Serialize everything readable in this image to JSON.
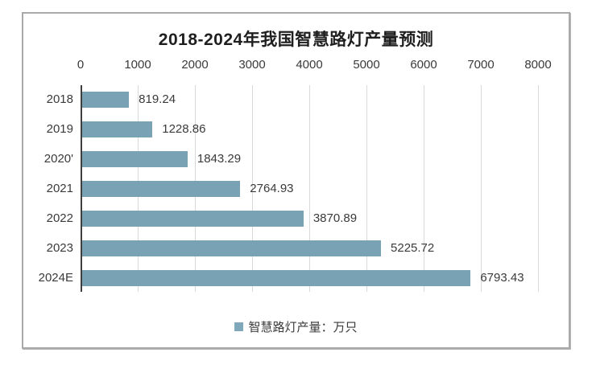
{
  "window": {
    "background": "#ffffff",
    "panel_border_color": "#a9a9a9"
  },
  "chart_data": {
    "type": "bar",
    "orientation": "horizontal",
    "title": "2018-2024年我国智慧路灯产量预测",
    "categories": [
      "2018",
      "2019",
      "2020'",
      "2021",
      "2022",
      "2023",
      "2024E"
    ],
    "values": [
      819.24,
      1228.86,
      1843.29,
      2764.93,
      3870.89,
      5225.72,
      6793.43
    ],
    "value_labels": [
      "819.24",
      "1228.86",
      "1843.29",
      "2764.93",
      "3870.89",
      "5225.72",
      "6793.43"
    ],
    "x_ticks": [
      "0",
      "1000",
      "2000",
      "3000",
      "4000",
      "5000",
      "6000",
      "7000",
      "8000"
    ],
    "xlim": [
      0,
      8000
    ],
    "axis_position": "top",
    "grid": true,
    "gridline_color": "#d9d9d9",
    "axis_line_color": "#3f3f3f",
    "bar_color": "#79a2b5",
    "text_color": "#3a3a3a",
    "legend": {
      "label": "智慧路灯产量：万只",
      "position": "bottom",
      "marker_color": "#7fa8bb"
    }
  }
}
